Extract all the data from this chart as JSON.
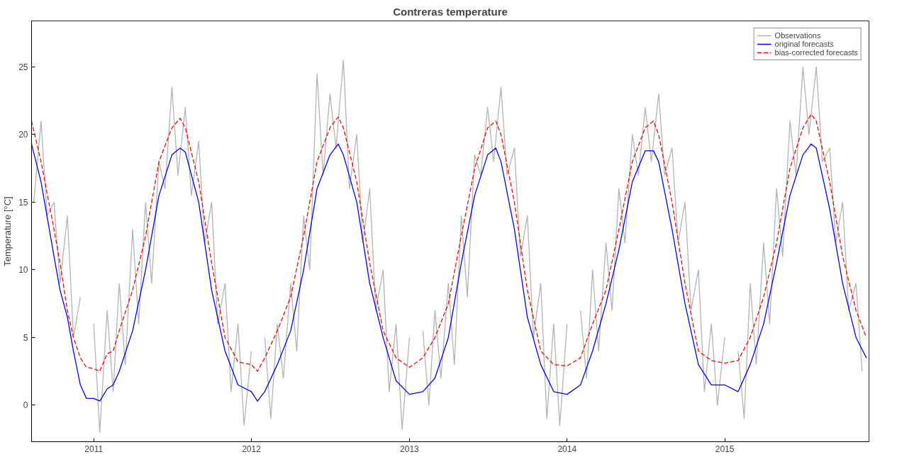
{
  "chart_data": {
    "type": "line",
    "title": "Contreras temperature",
    "ylabel": "Temperature [°C]",
    "xlim": [
      "2010-08-10",
      "2015-12-01"
    ],
    "ylim": [
      -2.7,
      28.4
    ],
    "xticks": [
      {
        "value": "2011-01-01",
        "label": "2011"
      },
      {
        "value": "2012-01-01",
        "label": "2012"
      },
      {
        "value": "2013-01-01",
        "label": "2013"
      },
      {
        "value": "2014-01-01",
        "label": "2014"
      },
      {
        "value": "2015-01-01",
        "label": "2015"
      }
    ],
    "yticks": [
      0,
      5,
      10,
      15,
      20,
      25
    ],
    "grid": false,
    "legend": "top right",
    "x": [
      "2010-08-10",
      "2010-09-01",
      "2010-10-01",
      "2010-10-15",
      "2010-11-01",
      "2010-11-15",
      "2010-12-01",
      "2010-12-15",
      "2011-01-01",
      "2011-01-15",
      "2011-02-01",
      "2011-02-15",
      "2011-03-01",
      "2011-04-01",
      "2011-05-01",
      "2011-06-01",
      "2011-07-01",
      "2011-07-20",
      "2011-08-01",
      "2011-09-01",
      "2011-10-01",
      "2011-11-01",
      "2011-12-01",
      "2012-01-01",
      "2012-01-15",
      "2012-02-01",
      "2012-03-01",
      "2012-04-01",
      "2012-05-01",
      "2012-06-01",
      "2012-07-01",
      "2012-07-20",
      "2012-08-01",
      "2012-09-01",
      "2012-10-01",
      "2012-11-01",
      "2012-12-01",
      "2013-01-01",
      "2013-02-01",
      "2013-03-01",
      "2013-04-01",
      "2013-05-01",
      "2013-06-01",
      "2013-07-01",
      "2013-07-20",
      "2013-08-01",
      "2013-09-01",
      "2013-10-01",
      "2013-11-01",
      "2013-12-01",
      "2014-01-01",
      "2014-02-01",
      "2014-03-01",
      "2014-04-01",
      "2014-05-01",
      "2014-06-01",
      "2014-07-01",
      "2014-07-20",
      "2014-08-01",
      "2014-09-01",
      "2014-10-01",
      "2014-11-01",
      "2014-12-01",
      "2015-01-01",
      "2015-02-01",
      "2015-03-01",
      "2015-04-01",
      "2015-05-01",
      "2015-06-01",
      "2015-07-01",
      "2015-07-20",
      "2015-08-01",
      "2015-09-01",
      "2015-10-01",
      "2015-11-01",
      "2015-11-25"
    ],
    "series": [
      {
        "name": "Observations",
        "color": "#b3b3b3",
        "line_style": "solid",
        "x": [
          "2010-08-15",
          "2010-09-01",
          "2010-09-15",
          "2010-10-01",
          "2010-10-15",
          "2010-11-01",
          "2010-11-15",
          "2010-12-01",
          "2010-12-15",
          "2011-01-01",
          "2011-01-15",
          "2011-02-01",
          "2011-02-15",
          "2011-03-01",
          "2011-03-15",
          "2011-04-01",
          "2011-04-15",
          "2011-05-01",
          "2011-05-15",
          "2011-06-01",
          "2011-06-15",
          "2011-07-01",
          "2011-07-15",
          "2011-08-01",
          "2011-08-15",
          "2011-09-01",
          "2011-09-15",
          "2011-10-01",
          "2011-10-15",
          "2011-11-01",
          "2011-11-15",
          "2011-12-01",
          "2011-12-15",
          "2012-01-01",
          "2012-01-15",
          "2012-02-01",
          "2012-02-15",
          "2012-03-01",
          "2012-03-15",
          "2012-04-01",
          "2012-04-15",
          "2012-05-01",
          "2012-05-15",
          "2012-06-01",
          "2012-06-15",
          "2012-07-01",
          "2012-07-15",
          "2012-08-01",
          "2012-08-15",
          "2012-09-01",
          "2012-09-15",
          "2012-10-01",
          "2012-10-15",
          "2012-11-01",
          "2012-11-15",
          "2012-12-01",
          "2012-12-15",
          "2013-01-01",
          "2013-01-15",
          "2013-02-01",
          "2013-02-15",
          "2013-03-01",
          "2013-03-15",
          "2013-04-01",
          "2013-04-15",
          "2013-05-01",
          "2013-05-15",
          "2013-06-01",
          "2013-06-15",
          "2013-07-01",
          "2013-07-15",
          "2013-08-01",
          "2013-08-15",
          "2013-09-01",
          "2013-09-15",
          "2013-10-01",
          "2013-10-15",
          "2013-11-01",
          "2013-11-15",
          "2013-12-01",
          "2013-12-15",
          "2014-01-01",
          "2014-01-15",
          "2014-02-01",
          "2014-02-15",
          "2014-03-01",
          "2014-03-15",
          "2014-04-01",
          "2014-04-15",
          "2014-05-01",
          "2014-05-15",
          "2014-06-01",
          "2014-06-15",
          "2014-07-01",
          "2014-07-15",
          "2014-08-01",
          "2014-08-15",
          "2014-09-01",
          "2014-09-15",
          "2014-10-01",
          "2014-10-15",
          "2014-11-01",
          "2014-11-15",
          "2014-12-01",
          "2014-12-15",
          "2015-01-01",
          "2015-01-15",
          "2015-02-01",
          "2015-02-15",
          "2015-03-01",
          "2015-03-15",
          "2015-04-01",
          "2015-04-15",
          "2015-05-01",
          "2015-05-15",
          "2015-06-01",
          "2015-06-15",
          "2015-07-01",
          "2015-07-15",
          "2015-08-01",
          "2015-08-15",
          "2015-09-01",
          "2015-09-15",
          "2015-10-01",
          "2015-10-15",
          "2015-11-01",
          "2015-11-15"
        ],
        "values": [
          15,
          21,
          14,
          15,
          9,
          14,
          5,
          8,
          null,
          6,
          -2,
          7,
          1,
          9,
          3,
          13,
          6,
          15,
          9,
          18,
          16,
          23.5,
          17,
          22,
          15.5,
          19.5,
          12,
          15,
          6,
          9,
          1,
          6,
          -1.5,
          4,
          null,
          5,
          -1,
          6,
          2,
          9,
          4,
          14,
          10,
          24.5,
          17,
          23,
          19,
          25.5,
          16,
          20,
          12,
          16,
          7,
          10,
          1,
          6,
          -1.8,
          5,
          null,
          5.5,
          0,
          7,
          2,
          9,
          3,
          14,
          8,
          18.5,
          17,
          22,
          18,
          23.5,
          17,
          19,
          11,
          14,
          5,
          9,
          -1,
          6,
          -1.5,
          6,
          null,
          7,
          2,
          10,
          4,
          12,
          7,
          16,
          12,
          20,
          17,
          22,
          18,
          23,
          17,
          19,
          12,
          15,
          7,
          10,
          1,
          6,
          0,
          5,
          null,
          4,
          -1,
          9,
          3,
          12,
          6,
          16,
          11,
          21,
          17,
          25,
          20,
          25,
          18,
          19,
          12,
          15,
          7,
          9,
          2.5
        ]
      },
      {
        "name": "original forecasts",
        "color": "#0000ff",
        "line_style": "solid",
        "values": [
          19.3,
          16.5,
          11,
          8.5,
          6.5,
          4,
          1.5,
          0.5,
          0.5,
          0.3,
          1.2,
          1.5,
          2.5,
          5.5,
          10,
          15.5,
          18.5,
          19,
          18.7,
          15,
          8.5,
          4,
          1.5,
          1,
          0.3,
          1,
          3,
          5.5,
          10,
          16,
          18.5,
          19.3,
          18.5,
          15,
          9,
          5,
          1.8,
          0.8,
          1,
          2,
          5,
          10.5,
          15.5,
          18.5,
          19,
          18,
          13,
          6.5,
          3,
          1,
          0.8,
          1.5,
          4,
          7.5,
          11.5,
          16.5,
          18.8,
          18.8,
          18,
          13,
          7.5,
          3,
          1.5,
          1.5,
          1,
          3,
          6,
          10.5,
          15.5,
          18.5,
          19.3,
          19,
          14.5,
          9,
          5,
          3.5
        ]
      },
      {
        "name": "bias-corrected forecasts",
        "color": "#ff0000",
        "line_style": "dashed",
        "values": [
          21,
          18,
          13,
          10.5,
          7,
          5,
          3.5,
          2.8,
          2.7,
          2.5,
          3.8,
          4,
          5.5,
          8.5,
          12.5,
          18,
          20.5,
          21.2,
          20.5,
          16.5,
          10.5,
          5,
          3.2,
          3,
          2.5,
          3.5,
          5.5,
          8,
          12.5,
          18,
          20.5,
          21.3,
          20.5,
          16.5,
          10.5,
          5.5,
          3.5,
          2.8,
          3.5,
          5,
          7.5,
          12.5,
          17.5,
          20.5,
          21,
          20,
          15,
          8.5,
          4,
          3,
          2.9,
          3.5,
          6,
          8.5,
          13,
          18,
          20.5,
          21,
          20,
          15,
          9,
          4,
          3.3,
          3.1,
          3.3,
          5,
          8,
          12,
          17.5,
          20.5,
          21.5,
          21,
          16.5,
          11,
          7,
          5
        ]
      }
    ]
  }
}
